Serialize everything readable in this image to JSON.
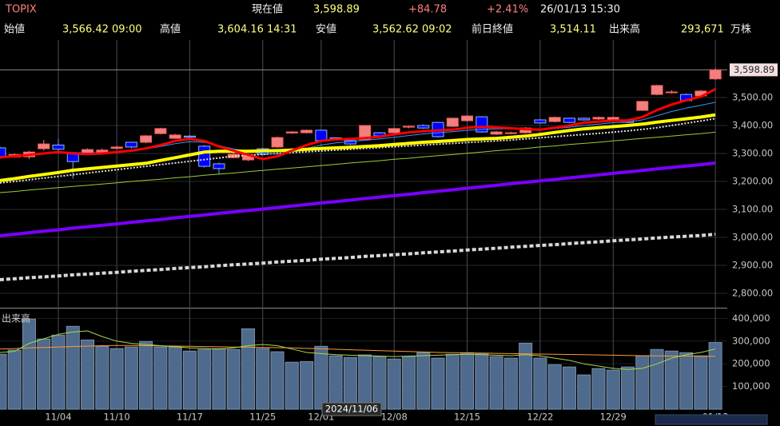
{
  "header": {
    "title": "TOPIX",
    "current_label": "現在値",
    "current": "3,598.89",
    "change": "+84.78",
    "change_pct": "+2.41%",
    "datetime": "26/01/13 15:30",
    "stats": [
      {
        "label": "始値",
        "value": "3,566.42 09:00"
      },
      {
        "label": "高値",
        "value": "3,604.16 14:31"
      },
      {
        "label": "安値",
        "value": "3,562.62 09:02"
      },
      {
        "label": "前日終値",
        "value": "3,514.11"
      },
      {
        "label": "出来高",
        "value": "293,671"
      }
    ],
    "unit": "万株"
  },
  "cursor_date": "2024/11/06",
  "chart_data": [
    {
      "type": "candlestick",
      "up_color": "#f08080",
      "down_color": "#0000ff",
      "grid": true,
      "open": [
        3320,
        3287,
        3288,
        3317,
        3330,
        3300,
        3300,
        3305,
        3318,
        3340,
        3340,
        3371,
        3354,
        3362,
        3326,
        3263,
        3285,
        3277,
        3317,
        3323,
        3373,
        3374,
        3383,
        3356,
        3346,
        3349,
        3374,
        3374,
        3394,
        3400,
        3411,
        3397,
        3417,
        3431,
        3369,
        3371,
        3374,
        3420,
        3414,
        3426,
        3426,
        3423,
        3420,
        3420,
        3454,
        3511,
        3517,
        3511,
        3506,
        3566.42
      ],
      "high": [
        3325,
        3300,
        3310,
        3348,
        3352,
        3305,
        3318,
        3318,
        3328,
        3342,
        3366,
        3392,
        3370,
        3366,
        3330,
        3268,
        3305,
        3300,
        3320,
        3360,
        3380,
        3386,
        3385,
        3358,
        3350,
        3402,
        3377,
        3392,
        3400,
        3404,
        3413,
        3428,
        3437,
        3433,
        3381,
        3378,
        3394,
        3422,
        3432,
        3428,
        3428,
        3432,
        3432,
        3423,
        3488,
        3546,
        3526,
        3514,
        3527,
        3604.16
      ],
      "low": [
        3280,
        3284,
        3280,
        3310,
        3300,
        3210,
        3296,
        3300,
        3314,
        3318,
        3336,
        3368,
        3352,
        3354,
        3250,
        3225,
        3282,
        3272,
        3294,
        3320,
        3370,
        3371,
        3344,
        3348,
        3330,
        3346,
        3360,
        3372,
        3390,
        3388,
        3357,
        3394,
        3414,
        3374,
        3366,
        3368,
        3371,
        3406,
        3411,
        3408,
        3417,
        3420,
        3418,
        3408,
        3452,
        3508,
        3514,
        3486,
        3503,
        3562.62
      ],
      "close": [
        3286,
        3296,
        3305,
        3334,
        3315,
        3271,
        3314,
        3312,
        3323,
        3323,
        3363,
        3389,
        3366,
        3358,
        3254,
        3246,
        3297,
        3294,
        3297,
        3357,
        3377,
        3383,
        3346,
        3352,
        3334,
        3400,
        3363,
        3389,
        3397,
        3391,
        3360,
        3426,
        3434,
        3377,
        3377,
        3374,
        3391,
        3409,
        3429,
        3411,
        3420,
        3429,
        3429,
        3411,
        3486,
        3543,
        3520,
        3489,
        3523,
        3598.89
      ],
      "lines": [
        {
          "color": "#d8d8d8",
          "values": [
            2849,
            2852,
            2856,
            2859,
            2862,
            2866,
            2869,
            2872,
            2875,
            2879,
            2882,
            2885,
            2889,
            2892,
            2895,
            2899,
            2902,
            2905,
            2908,
            2912,
            2915,
            2918,
            2922,
            2925,
            2928,
            2932,
            2935,
            2938,
            2941,
            2945,
            2948,
            2951,
            2955,
            2958,
            2961,
            2965,
            2968,
            2971,
            2974,
            2978,
            2981,
            2984,
            2988,
            2991,
            2994,
            2998,
            3001,
            3004,
            3007,
            3011
          ]
        },
        {
          "color": "#7a00ff",
          "values": [
            3006,
            3011,
            3017,
            3022,
            3027,
            3033,
            3038,
            3043,
            3048,
            3054,
            3059,
            3064,
            3070,
            3075,
            3080,
            3086,
            3091,
            3096,
            3101,
            3107,
            3112,
            3117,
            3123,
            3128,
            3133,
            3139,
            3144,
            3149,
            3154,
            3160,
            3165,
            3170,
            3176,
            3181,
            3186,
            3192,
            3197,
            3202,
            3207,
            3213,
            3218,
            3223,
            3229,
            3234,
            3239,
            3245,
            3250,
            3255,
            3260,
            3266
          ]
        },
        {
          "color": "#9acd32",
          "values": [
            3160,
            3164,
            3169,
            3173,
            3178,
            3182,
            3186,
            3191,
            3195,
            3200,
            3204,
            3208,
            3213,
            3217,
            3222,
            3226,
            3230,
            3235,
            3239,
            3244,
            3248,
            3252,
            3257,
            3261,
            3266,
            3270,
            3274,
            3279,
            3283,
            3288,
            3292,
            3296,
            3301,
            3305,
            3310,
            3314,
            3318,
            3323,
            3327,
            3332,
            3336,
            3340,
            3345,
            3349,
            3354,
            3358,
            3362,
            3367,
            3371,
            3376
          ]
        },
        {
          "color": "#e0e0e0",
          "values": [
            3195,
            3200,
            3206,
            3212,
            3218,
            3224,
            3230,
            3236,
            3242,
            3248,
            3254,
            3260,
            3266,
            3272,
            3278,
            3284,
            3290,
            3294,
            3297,
            3300,
            3303,
            3306,
            3309,
            3312,
            3315,
            3318,
            3321,
            3324,
            3327,
            3330,
            3333,
            3336,
            3339,
            3342,
            3345,
            3348,
            3352,
            3356,
            3360,
            3364,
            3368,
            3372,
            3376,
            3381,
            3386,
            3392,
            3400,
            3408,
            3416,
            3425
          ]
        },
        {
          "color": "#3399ff",
          "values": [
            3289,
            3292,
            3296,
            3300,
            3303,
            3303,
            3302,
            3303,
            3306,
            3310,
            3316,
            3325,
            3335,
            3342,
            3340,
            3328,
            3316,
            3308,
            3300,
            3298,
            3305,
            3318,
            3330,
            3338,
            3343,
            3347,
            3352,
            3358,
            3364,
            3370,
            3374,
            3378,
            3383,
            3386,
            3388,
            3388,
            3387,
            3386,
            3389,
            3394,
            3400,
            3405,
            3410,
            3412,
            3420,
            3435,
            3450,
            3462,
            3472,
            3483
          ]
        },
        {
          "color": "#ffff00",
          "values": [
            3203,
            3210,
            3218,
            3225,
            3232,
            3240,
            3245,
            3250,
            3255,
            3260,
            3265,
            3275,
            3285,
            3295,
            3305,
            3308,
            3308,
            3308,
            3309,
            3310,
            3312,
            3315,
            3318,
            3320,
            3322,
            3325,
            3328,
            3332,
            3336,
            3340,
            3343,
            3346,
            3350,
            3352,
            3354,
            3358,
            3362,
            3368,
            3375,
            3382,
            3388,
            3392,
            3396,
            3400,
            3405,
            3412,
            3418,
            3424,
            3430,
            3438
          ]
        },
        {
          "color": "#ff0000",
          "values": [
            3286,
            3290,
            3295,
            3300,
            3305,
            3300,
            3298,
            3300,
            3305,
            3310,
            3318,
            3330,
            3345,
            3352,
            3345,
            3325,
            3310,
            3295,
            3280,
            3290,
            3310,
            3330,
            3345,
            3350,
            3352,
            3355,
            3360,
            3368,
            3375,
            3380,
            3382,
            3385,
            3392,
            3395,
            3393,
            3390,
            3387,
            3385,
            3392,
            3400,
            3410,
            3414,
            3418,
            3418,
            3430,
            3455,
            3475,
            3490,
            3503,
            3530
          ]
        }
      ],
      "ylim": [
        2750,
        3700
      ],
      "yticks": [
        {
          "value": 2800,
          "label": "2,800.00"
        },
        {
          "value": 2900,
          "label": "2,900.00"
        },
        {
          "value": 3000,
          "label": "3,000.00"
        },
        {
          "value": 3100,
          "label": "3,100.00"
        },
        {
          "value": 3200,
          "label": "3,200.00"
        },
        {
          "value": 3300,
          "label": "3,300.00"
        },
        {
          "value": 3400,
          "label": "3,400.00"
        },
        {
          "value": 3500,
          "label": "3,500.00"
        }
      ],
      "last_price": {
        "value": 3598.89,
        "label": "3,598.89"
      }
    },
    {
      "type": "bar",
      "title": "出来高",
      "color": "#4e6a8c",
      "grid": true,
      "categories": [
        null,
        null,
        null,
        null,
        "11/04",
        null,
        null,
        null,
        "11/10",
        null,
        null,
        null,
        null,
        "11/17",
        null,
        null,
        null,
        null,
        "11/25",
        null,
        null,
        null,
        "12/01",
        null,
        null,
        null,
        null,
        "12/08",
        null,
        null,
        null,
        null,
        "12/15",
        null,
        null,
        null,
        null,
        "12/22",
        null,
        null,
        null,
        null,
        "12/29",
        null,
        null,
        null,
        null,
        null,
        null,
        "01/13"
      ],
      "values": [
        242000,
        260000,
        397000,
        309000,
        326000,
        365000,
        305000,
        277000,
        267000,
        274000,
        298000,
        274000,
        274000,
        256000,
        263000,
        267000,
        263000,
        354000,
        267000,
        253000,
        207000,
        210000,
        277000,
        235000,
        228000,
        239000,
        232000,
        221000,
        232000,
        249000,
        225000,
        242000,
        249000,
        246000,
        232000,
        225000,
        291000,
        225000,
        196000,
        186000,
        151000,
        179000,
        172000,
        186000,
        235000,
        263000,
        256000,
        249000,
        235000,
        293671
      ],
      "lines": [
        {
          "color": "#ff9933",
          "values": [
            265000,
            267000,
            270000,
            272000,
            274000,
            276000,
            278000,
            280000,
            281000,
            281000,
            280000,
            279000,
            278000,
            277000,
            276000,
            275000,
            274000,
            273000,
            272000,
            271000,
            270000,
            268000,
            266000,
            264000,
            262000,
            260000,
            258000,
            256000,
            254000,
            252000,
            250000,
            249000,
            248000,
            247000,
            246000,
            245000,
            244000,
            243000,
            242000,
            241000,
            240000,
            239000,
            238000,
            237000,
            236000,
            235000,
            234000,
            234000,
            233000,
            233000
          ]
        },
        {
          "color": "#a8d84a",
          "values": [
            250000,
            255000,
            290000,
            310000,
            330000,
            340000,
            345000,
            320000,
            300000,
            290000,
            285000,
            280000,
            275000,
            270000,
            268000,
            265000,
            270000,
            280000,
            285000,
            280000,
            265000,
            250000,
            245000,
            240000,
            238000,
            236000,
            234000,
            232000,
            234000,
            236000,
            238000,
            240000,
            242000,
            240000,
            238000,
            236000,
            240000,
            235000,
            225000,
            215000,
            200000,
            190000,
            180000,
            175000,
            180000,
            200000,
            225000,
            240000,
            250000,
            265000
          ]
        }
      ],
      "ylim": [
        0,
        440000
      ],
      "yticks": [
        {
          "value": 100000,
          "label": "100,000"
        },
        {
          "value": 200000,
          "label": "200,000"
        },
        {
          "value": 300000,
          "label": "300,000"
        },
        {
          "value": 400000,
          "label": "400,000"
        }
      ]
    }
  ]
}
